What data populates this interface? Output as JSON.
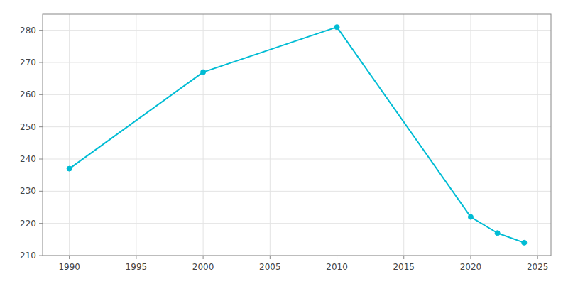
{
  "chart_data": {
    "type": "line",
    "x": [
      1990,
      2000,
      2010,
      2020,
      2022,
      2024
    ],
    "values": [
      237,
      267,
      281,
      222,
      217,
      214
    ],
    "color": "#00bcd4",
    "marker": "circle",
    "xlim": [
      1988,
      2026
    ],
    "ylim": [
      210,
      285
    ],
    "xticks": [
      1990,
      1995,
      2000,
      2005,
      2010,
      2015,
      2020,
      2025
    ],
    "yticks": [
      210,
      220,
      230,
      240,
      250,
      260,
      270,
      280
    ],
    "grid": true
  }
}
